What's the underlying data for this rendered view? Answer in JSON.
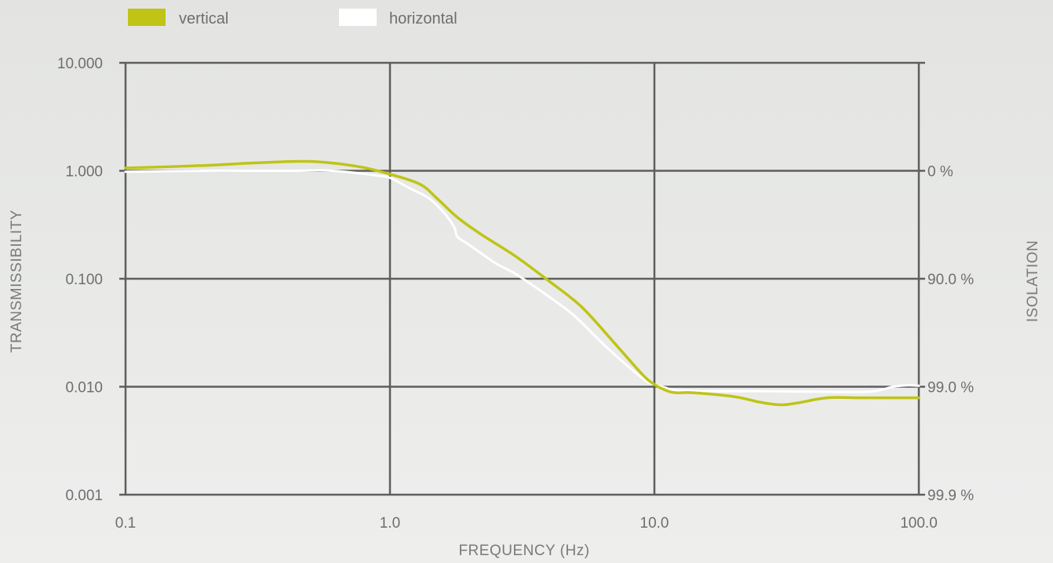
{
  "chart_data": {
    "type": "line",
    "xscale": "log",
    "yscale": "log",
    "xlim": [
      0.1,
      100
    ],
    "ylim": [
      0.001,
      10
    ],
    "xlabel": "FREQUENCY (Hz)",
    "ylabel": "TRANSMISSIBILITY",
    "y2label": "ISOLATION",
    "grid": true,
    "legend_position": "top-left",
    "x_ticks": [
      {
        "value": 0.1,
        "label": "0.1"
      },
      {
        "value": 1,
        "label": "1.0"
      },
      {
        "value": 10,
        "label": "10.0"
      },
      {
        "value": 100,
        "label": "100.0"
      }
    ],
    "y_ticks": [
      {
        "value": 10,
        "label": "10.000"
      },
      {
        "value": 1,
        "label": "1.000"
      },
      {
        "value": 0.1,
        "label": "0.100"
      },
      {
        "value": 0.01,
        "label": "0.010"
      },
      {
        "value": 0.001,
        "label": "0.001"
      }
    ],
    "y2_ticks": [
      {
        "value": 1,
        "label": "0 %"
      },
      {
        "value": 0.1,
        "label": "90.0 %"
      },
      {
        "value": 0.01,
        "label": "99.0 %"
      },
      {
        "value": 0.001,
        "label": "99.9 %"
      }
    ],
    "series": [
      {
        "name": "vertical",
        "color": "#bfc416",
        "points": [
          [
            0.1,
            1.06
          ],
          [
            0.2,
            1.12
          ],
          [
            0.3,
            1.18
          ],
          [
            0.5,
            1.22
          ],
          [
            0.75,
            1.1
          ],
          [
            1.0,
            0.93
          ],
          [
            1.3,
            0.75
          ],
          [
            1.5,
            0.56
          ],
          [
            1.8,
            0.37
          ],
          [
            2.2,
            0.26
          ],
          [
            3.0,
            0.16
          ],
          [
            4.0,
            0.095
          ],
          [
            5.3,
            0.055
          ],
          [
            7.0,
            0.026
          ],
          [
            9.0,
            0.013
          ],
          [
            10.0,
            0.0105
          ],
          [
            11.0,
            0.0093
          ],
          [
            12.0,
            0.0088
          ],
          [
            14.0,
            0.0088
          ],
          [
            20.0,
            0.0081
          ],
          [
            25.0,
            0.0072
          ],
          [
            30.0,
            0.0068
          ],
          [
            35.0,
            0.0071
          ],
          [
            45.0,
            0.0079
          ],
          [
            60.0,
            0.0079
          ],
          [
            80.0,
            0.0079
          ],
          [
            100.0,
            0.0079
          ]
        ]
      },
      {
        "name": "horizontal",
        "color": "#ffffff",
        "points": [
          [
            0.1,
            0.98
          ],
          [
            0.2,
            1.0
          ],
          [
            0.3,
            1.0
          ],
          [
            0.45,
            1.0
          ],
          [
            0.55,
            1.01
          ],
          [
            0.7,
            0.97
          ],
          [
            0.9,
            0.9
          ],
          [
            1.0,
            0.86
          ],
          [
            1.2,
            0.68
          ],
          [
            1.4,
            0.56
          ],
          [
            1.6,
            0.41
          ],
          [
            1.75,
            0.3
          ],
          [
            1.8,
            0.245
          ],
          [
            2.0,
            0.205
          ],
          [
            2.5,
            0.14
          ],
          [
            3.0,
            0.11
          ],
          [
            4.0,
            0.068
          ],
          [
            5.0,
            0.045
          ],
          [
            6.5,
            0.024
          ],
          [
            9.0,
            0.012
          ],
          [
            10.0,
            0.0105
          ],
          [
            11.0,
            0.0098
          ],
          [
            12.0,
            0.0093
          ],
          [
            16.0,
            0.0091
          ],
          [
            25.0,
            0.0091
          ],
          [
            40.0,
            0.009
          ],
          [
            65.0,
            0.009
          ],
          [
            80.0,
            0.01
          ],
          [
            90.0,
            0.0103
          ],
          [
            100.0,
            0.0102
          ]
        ]
      }
    ]
  },
  "colors": {
    "vertical": "#bfc416",
    "horizontal": "#ffffff",
    "grid": "#5e5e5e",
    "background": "#e6e7e5"
  }
}
